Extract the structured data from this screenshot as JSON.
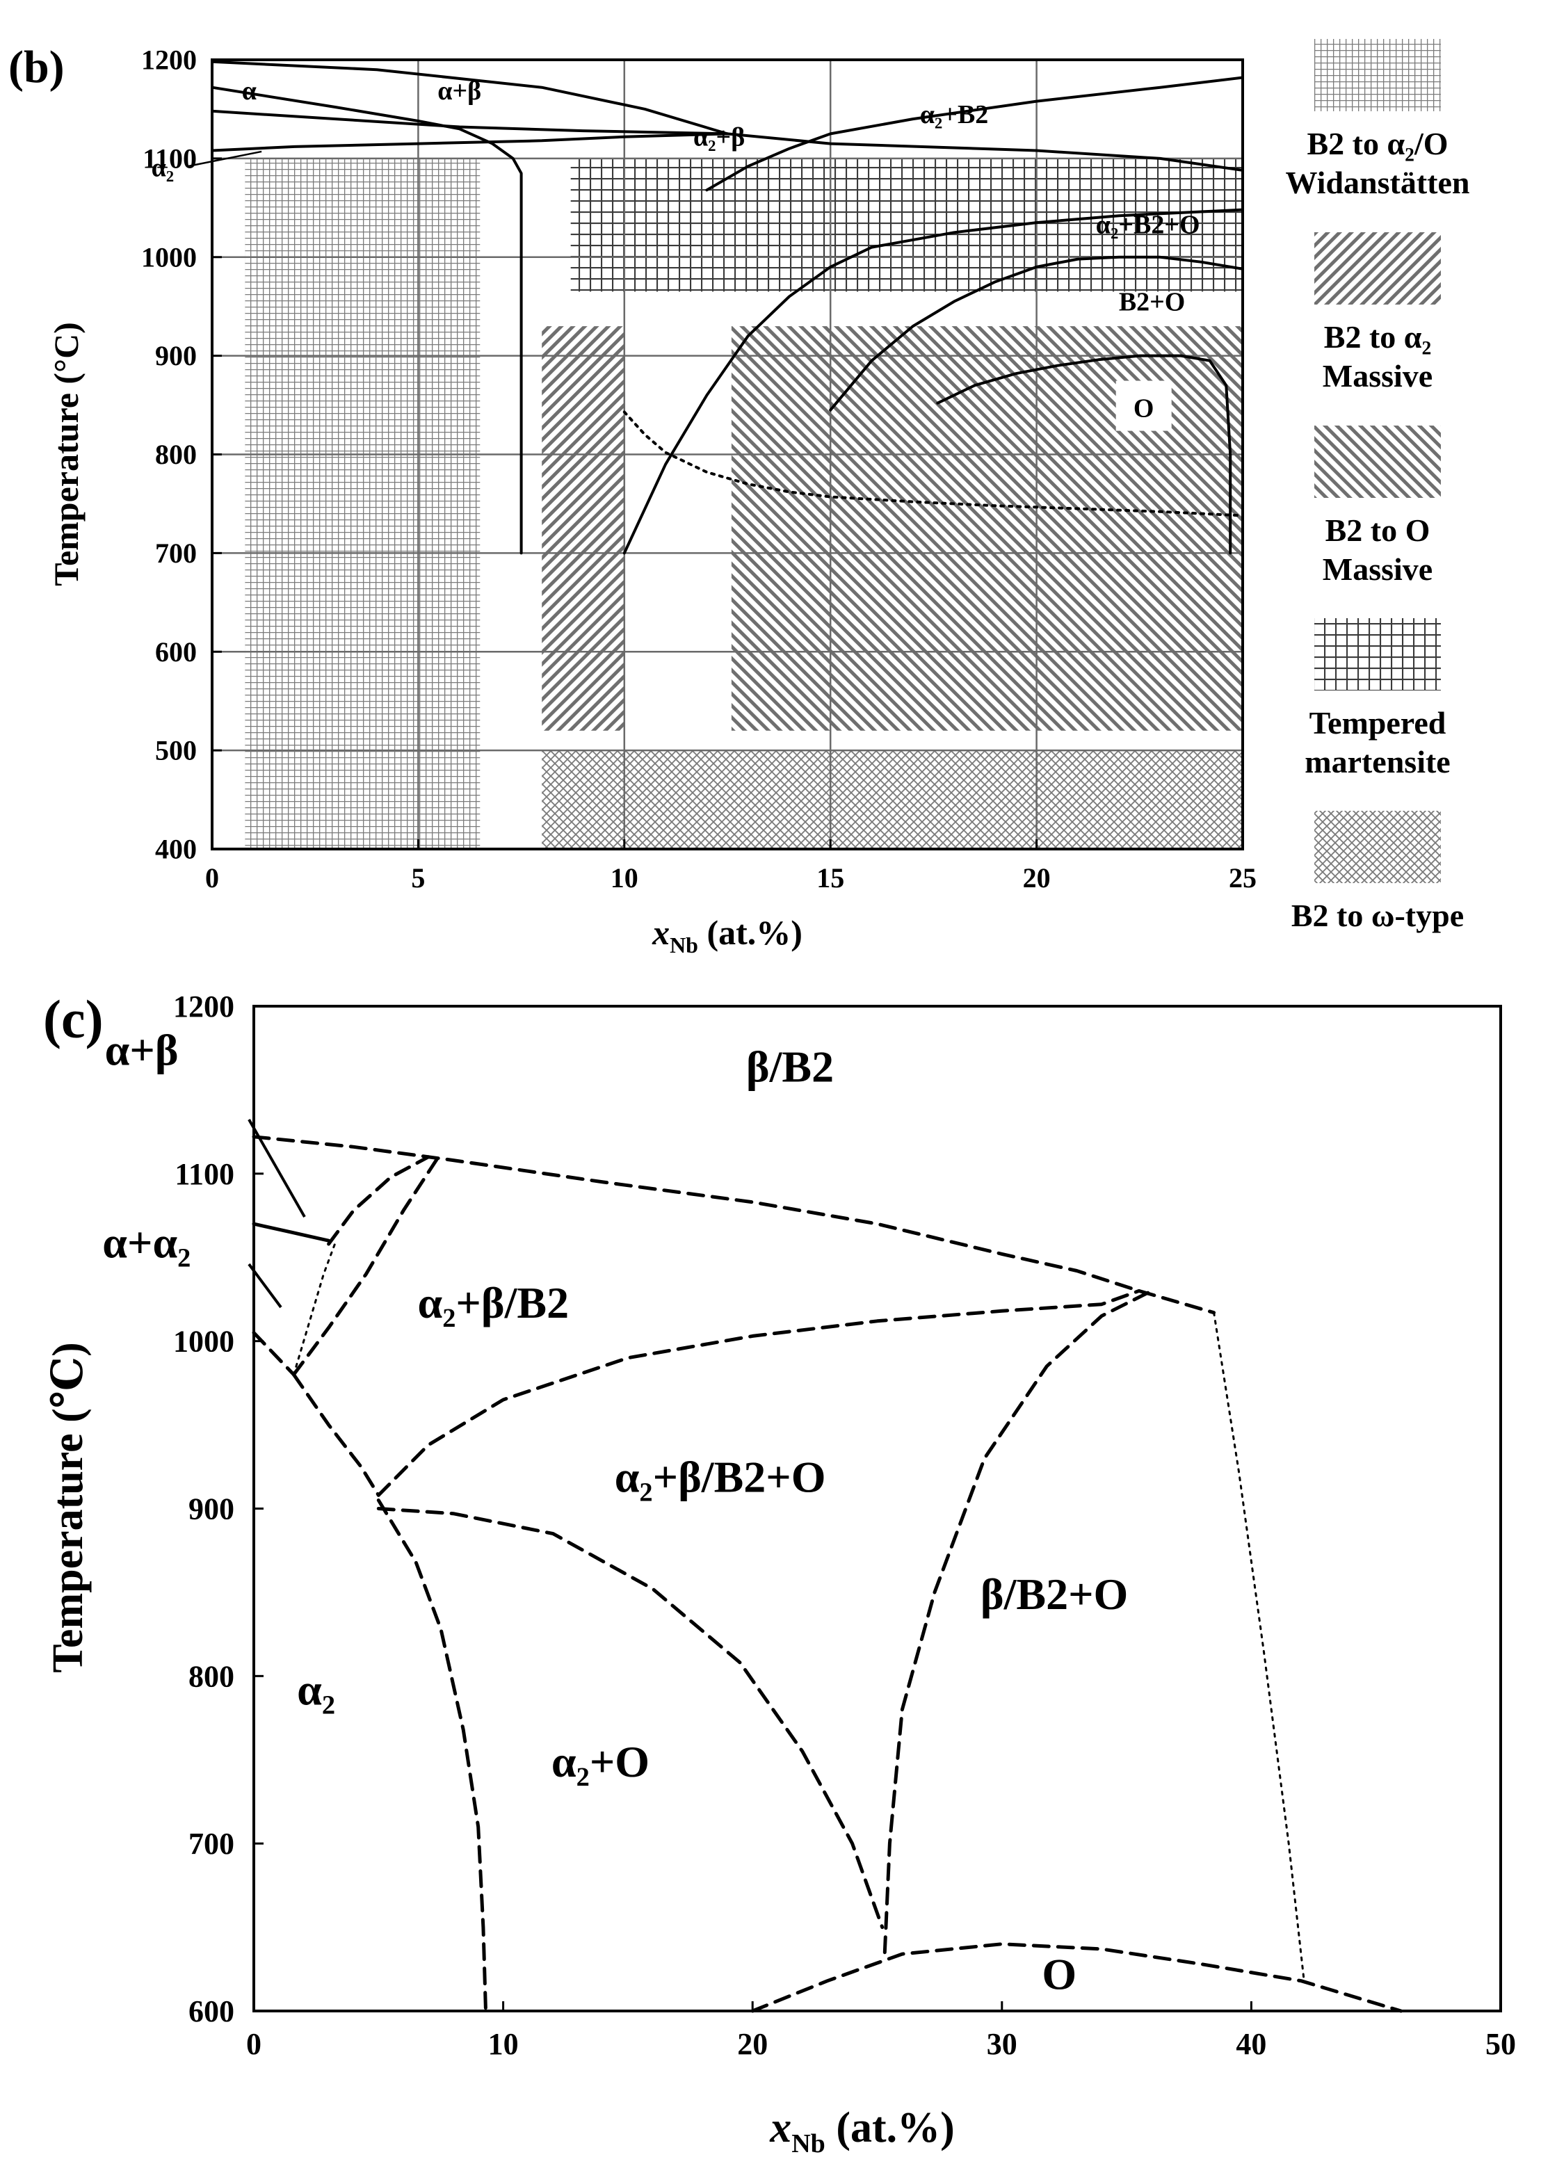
{
  "figure_b": {
    "panel_label": "(b)",
    "legend": [
      {
        "id": "widmanstatten",
        "lines": [
          "B2 to α₂/O",
          "Widanstätten"
        ],
        "pattern": "fine-grid"
      },
      {
        "id": "massive-a2",
        "lines": [
          "B2 to α₂",
          "Massive"
        ],
        "pattern": "diag-right"
      },
      {
        "id": "massive-o",
        "lines": [
          "B2 to O",
          "Massive"
        ],
        "pattern": "diag-left"
      },
      {
        "id": "martensite",
        "lines": [
          "Tempered",
          "martensite"
        ],
        "pattern": "coarse-grid"
      },
      {
        "id": "omega",
        "lines": [
          "B2 to ω-type"
        ],
        "pattern": "crosshatch"
      }
    ]
  },
  "figure_c": {
    "panel_label": "(c)"
  },
  "chart_data": [
    {
      "type": "line",
      "panel": "b",
      "xlabel_main": "x",
      "xlabel_sub": "Nb",
      "xlabel_rest": " (at.%)",
      "ylabel": "Temperature (°C)",
      "xlim": [
        0,
        25
      ],
      "ylim": [
        400,
        1200
      ],
      "xticks": [
        0,
        5,
        10,
        15,
        20,
        25
      ],
      "yticks": [
        400,
        500,
        600,
        700,
        800,
        900,
        1000,
        1100,
        1200
      ],
      "grid": true,
      "series": [
        {
          "name": "beta-transus",
          "style": "solid",
          "points": [
            [
              0,
              1198
            ],
            [
              4,
              1190
            ],
            [
              8,
              1172
            ],
            [
              10.5,
              1150
            ],
            [
              12.5,
              1125
            ],
            [
              15,
              1115
            ],
            [
              20,
              1108
            ],
            [
              23,
              1100
            ],
            [
              25,
              1088
            ]
          ]
        },
        {
          "name": "alpha-upper",
          "style": "solid",
          "points": [
            [
              0,
              1172
            ],
            [
              3,
              1152
            ],
            [
              5,
              1138
            ],
            [
              6,
              1130
            ],
            [
              6.8,
              1115
            ],
            [
              7.3,
              1100
            ],
            [
              7.5,
              1085
            ],
            [
              7.5,
              700
            ]
          ]
        },
        {
          "name": "alpha-lower",
          "style": "solid",
          "points": [
            [
              0,
              1148
            ],
            [
              3,
              1140
            ],
            [
              6,
              1132
            ],
            [
              9,
              1128
            ],
            [
              12.5,
              1125
            ]
          ]
        },
        {
          "name": "alpha2-solvus",
          "style": "solid",
          "points": [
            [
              0,
              1108
            ],
            [
              2,
              1112
            ],
            [
              5,
              1115
            ],
            [
              8,
              1118
            ],
            [
              10,
              1122
            ],
            [
              12.5,
              1125
            ]
          ]
        },
        {
          "name": "a2-b2-boundary",
          "style": "solid",
          "points": [
            [
              12,
              1068
            ],
            [
              13,
              1092
            ],
            [
              14,
              1110
            ],
            [
              15,
              1125
            ],
            [
              17,
              1140
            ],
            [
              20,
              1158
            ],
            [
              23,
              1172
            ],
            [
              25,
              1182
            ]
          ]
        },
        {
          "name": "a2b2o-upper",
          "style": "solid",
          "points": [
            [
              10,
              700
            ],
            [
              11,
              790
            ],
            [
              12,
              860
            ],
            [
              13,
              920
            ],
            [
              14,
              960
            ],
            [
              15,
              990
            ],
            [
              16,
              1010
            ],
            [
              18,
              1025
            ],
            [
              20,
              1035
            ],
            [
              22,
              1042
            ],
            [
              25,
              1048
            ]
          ]
        },
        {
          "name": "b2o-boundary",
          "style": "solid",
          "points": [
            [
              15,
              845
            ],
            [
              16,
              895
            ],
            [
              17,
              930
            ],
            [
              18,
              955
            ],
            [
              19,
              975
            ],
            [
              20,
              990
            ],
            [
              21,
              998
            ],
            [
              22,
              1000
            ],
            [
              23,
              1000
            ],
            [
              24,
              995
            ],
            [
              25,
              988
            ]
          ]
        },
        {
          "name": "o-phase",
          "style": "solid",
          "points": [
            [
              17.6,
              852
            ],
            [
              18.5,
              870
            ],
            [
              19.5,
              882
            ],
            [
              20.5,
              890
            ],
            [
              21.5,
              896
            ],
            [
              22.5,
              900
            ],
            [
              23.5,
              900
            ],
            [
              24.2,
              895
            ],
            [
              24.6,
              870
            ],
            [
              24.7,
              800
            ],
            [
              24.7,
              700
            ]
          ]
        },
        {
          "name": "dotted-line",
          "style": "dotted",
          "points": [
            [
              10,
              843
            ],
            [
              10.5,
              820
            ],
            [
              11,
              802
            ],
            [
              12,
              782
            ],
            [
              13,
              770
            ],
            [
              14,
              762
            ],
            [
              15,
              757
            ],
            [
              17,
              752
            ],
            [
              19,
              748
            ],
            [
              21,
              745
            ],
            [
              23,
              742
            ],
            [
              25,
              738
            ]
          ]
        }
      ],
      "regions": [
        {
          "name": "widmanstatten",
          "pattern": "fine-grid",
          "x": [
            0.8,
            6.5
          ],
          "y": [
            400,
            1100
          ]
        },
        {
          "name": "martensite",
          "pattern": "coarse-grid",
          "x": [
            8.7,
            25
          ],
          "y": [
            965,
            1100
          ]
        },
        {
          "name": "massive-a2",
          "pattern": "diag-right",
          "x": [
            8,
            10
          ],
          "y": [
            520,
            930
          ]
        },
        {
          "name": "massive-o",
          "pattern": "diag-left",
          "x": [
            12.6,
            25
          ],
          "y": [
            520,
            930
          ]
        },
        {
          "name": "omega",
          "pattern": "crosshatch",
          "x": [
            8,
            25
          ],
          "y": [
            400,
            500
          ]
        }
      ],
      "annotations": [
        {
          "text": "α",
          "x": 0.9,
          "y": 1160
        },
        {
          "text": "α+β",
          "x": 6.0,
          "y": 1160
        },
        {
          "text": "α₂+β",
          "x": 12.3,
          "y": 1113
        },
        {
          "text": "α₂+B2",
          "x": 18.0,
          "y": 1136
        },
        {
          "text": "α₂",
          "x": -1.2,
          "y": 1082
        },
        {
          "text": "α₂+B2+O",
          "x": 22.7,
          "y": 1024
        },
        {
          "text": "B2+O",
          "x": 22.8,
          "y": 946
        },
        {
          "text": "O",
          "x": 22.6,
          "y": 838
        }
      ]
    },
    {
      "type": "line",
      "panel": "c",
      "xlabel_main": "x",
      "xlabel_sub": "Nb",
      "xlabel_rest": " (at.%)",
      "ylabel": "Temperature (℃)",
      "xlim": [
        0,
        50
      ],
      "ylim": [
        600,
        1200
      ],
      "xticks": [
        0,
        10,
        20,
        30,
        40,
        50
      ],
      "yticks": [
        600,
        700,
        800,
        900,
        1000,
        1100,
        1200
      ],
      "grid": false,
      "series": [
        {
          "name": "beta-transus",
          "style": "dashed",
          "points": [
            [
              0,
              1122
            ],
            [
              4,
              1116
            ],
            [
              8,
              1108
            ],
            [
              14,
              1095
            ],
            [
              20,
              1083
            ],
            [
              25,
              1070
            ],
            [
              30,
              1052
            ],
            [
              33,
              1042
            ],
            [
              35.5,
              1030
            ],
            [
              38.5,
              1017
            ]
          ]
        },
        {
          "name": "a-a2b2-line1",
          "style": "dashed",
          "points": [
            [
              3,
              1058
            ],
            [
              4,
              1078
            ],
            [
              5.5,
              1098
            ],
            [
              7,
              1110
            ]
          ]
        },
        {
          "name": "a-a2b2-line2",
          "style": "dashed",
          "points": [
            [
              1.6,
              980
            ],
            [
              3,
              1008
            ],
            [
              4.5,
              1040
            ],
            [
              6,
              1078
            ],
            [
              7.4,
              1110
            ]
          ]
        },
        {
          "name": "upper-solid",
          "style": "solid",
          "points": [
            [
              0,
              1070
            ],
            [
              1.5,
              1065
            ],
            [
              3,
              1060
            ]
          ]
        },
        {
          "name": "inner-dotted",
          "style": "dotted",
          "points": [
            [
              1.6,
              980
            ],
            [
              2.2,
              1010
            ],
            [
              2.8,
              1040
            ],
            [
              3.3,
              1060
            ]
          ]
        },
        {
          "name": "a2-curve",
          "style": "dashed",
          "points": [
            [
              0,
              1005
            ],
            [
              1.6,
              980
            ]
          ]
        },
        {
          "name": "a2-lower-left",
          "style": "dashed",
          "points": [
            [
              1.6,
              980
            ],
            [
              3,
              950
            ],
            [
              4.3,
              925
            ],
            [
              5,
              908
            ]
          ]
        },
        {
          "name": "a2b2-mid",
          "style": "dashed",
          "points": [
            [
              5,
              908
            ],
            [
              7,
              938
            ],
            [
              10,
              965
            ],
            [
              15,
              990
            ],
            [
              20,
              1003
            ],
            [
              25,
              1012
            ],
            [
              30,
              1018
            ],
            [
              34,
              1022
            ],
            [
              35.5,
              1030
            ]
          ]
        },
        {
          "name": "o-boundary-left",
          "style": "dashed",
          "points": [
            [
              5,
              905
            ],
            [
              6.5,
              868
            ],
            [
              7.5,
              828
            ],
            [
              8.4,
              768
            ],
            [
              9,
              710
            ],
            [
              9.2,
              650
            ],
            [
              9.3,
              600
            ]
          ]
        },
        {
          "name": "a2o-boundary",
          "style": "dashed",
          "points": [
            [
              5,
              900
            ],
            [
              8,
              897
            ],
            [
              12,
              885
            ],
            [
              16,
              852
            ],
            [
              19.5,
              808
            ],
            [
              22,
              755
            ],
            [
              24,
              700
            ],
            [
              25.2,
              650
            ]
          ]
        },
        {
          "name": "b2o-boundary",
          "style": "dashed",
          "points": [
            [
              25.3,
              635
            ],
            [
              25.5,
              700
            ],
            [
              26,
              780
            ],
            [
              27.3,
              850
            ],
            [
              29.3,
              930
            ],
            [
              31.8,
              985
            ],
            [
              34,
              1015
            ],
            [
              36,
              1030
            ]
          ]
        },
        {
          "name": "o-dome",
          "style": "dashed",
          "points": [
            [
              20,
              600
            ],
            [
              23,
              618
            ],
            [
              26,
              634
            ],
            [
              30,
              640
            ],
            [
              34,
              637
            ],
            [
              38,
              628
            ],
            [
              42,
              618
            ],
            [
              46,
              600
            ]
          ]
        },
        {
          "name": "right-dotted",
          "style": "dotted",
          "points": [
            [
              38.5,
              1017
            ],
            [
              39.5,
              922
            ],
            [
              40.5,
              815
            ],
            [
              41.5,
              700
            ],
            [
              42.1,
              620
            ]
          ]
        }
      ],
      "annotations": [
        {
          "text": "β/B2",
          "x": 21.5,
          "y": 1155
        },
        {
          "text": "α+β",
          "x": -4.5,
          "y": 1165
        },
        {
          "text": "α+α₂",
          "x": -4.3,
          "y": 1050
        },
        {
          "text": "α₂+β/B2",
          "x": 9.6,
          "y": 1014
        },
        {
          "text": "α₂+β/B2+O",
          "x": 18.7,
          "y": 910
        },
        {
          "text": "β/B2+O",
          "x": 32.1,
          "y": 840
        },
        {
          "text": "α₂",
          "x": 2.5,
          "y": 783
        },
        {
          "text": "α₂+O",
          "x": 13.9,
          "y": 740
        },
        {
          "text": "O",
          "x": 32.3,
          "y": 613
        }
      ]
    }
  ]
}
